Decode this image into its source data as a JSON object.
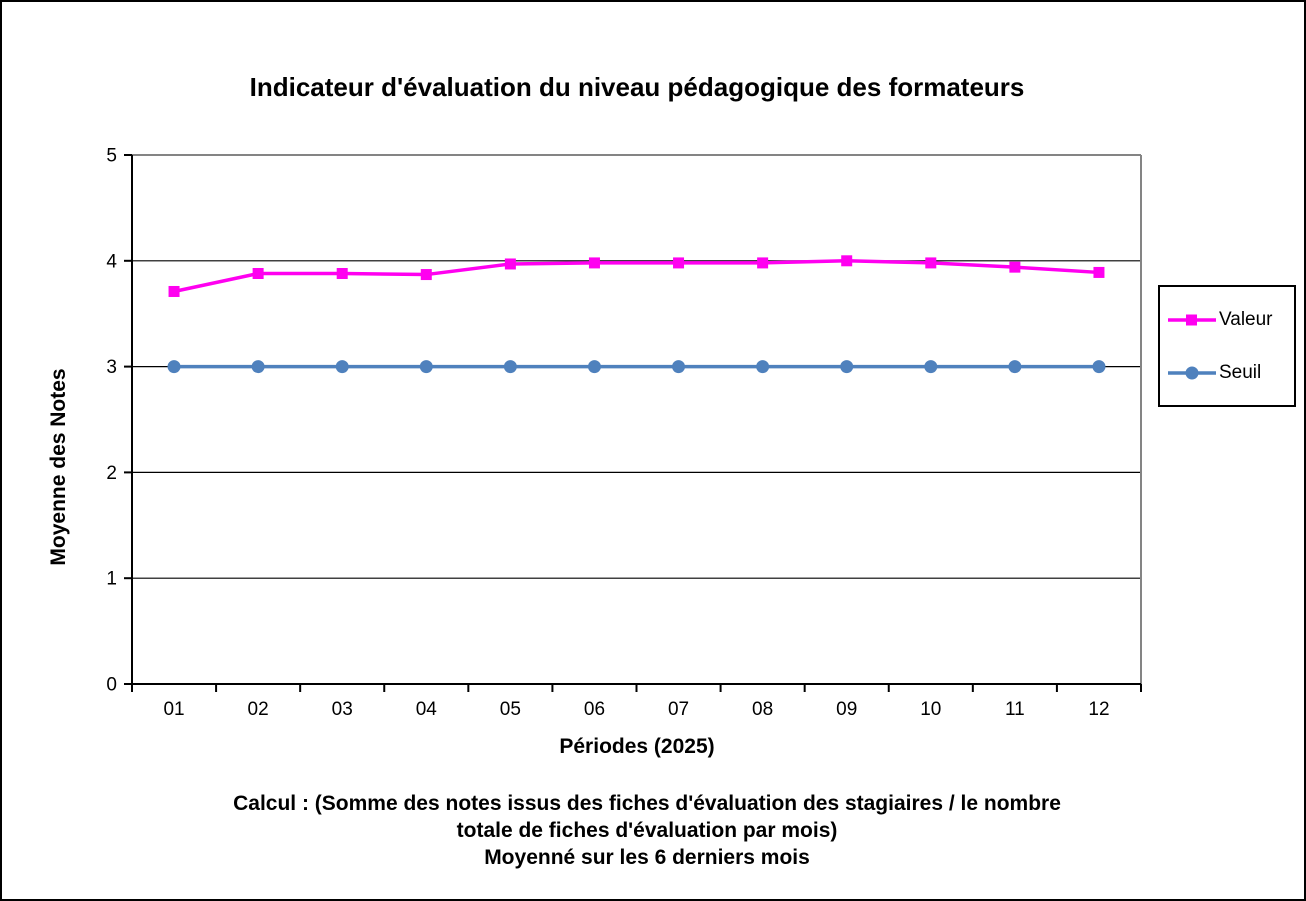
{
  "chart_data": {
    "type": "line",
    "title": "Indicateur d'évaluation du niveau pédagogique des formateurs",
    "xlabel": "Périodes (2025)",
    "ylabel": "Moyenne des Notes",
    "categories": [
      "01",
      "02",
      "03",
      "04",
      "05",
      "06",
      "07",
      "08",
      "09",
      "10",
      "11",
      "12"
    ],
    "series": [
      {
        "name": "Valeur",
        "color": "#FF00F0",
        "marker": "square",
        "values": [
          3.71,
          3.88,
          3.88,
          3.87,
          3.97,
          3.98,
          3.98,
          3.98,
          4.0,
          3.98,
          3.94,
          3.89
        ]
      },
      {
        "name": "Seuil",
        "color": "#4F81BD",
        "marker": "circle",
        "values": [
          3.0,
          3.0,
          3.0,
          3.0,
          3.0,
          3.0,
          3.0,
          3.0,
          3.0,
          3.0,
          3.0,
          3.0
        ]
      }
    ],
    "ylim": [
      0,
      5
    ],
    "yticks": [
      0,
      1,
      2,
      3,
      4,
      5
    ],
    "grid": "horizontal",
    "legend_position": "right"
  },
  "caption": {
    "lines": [
      "Calcul : (Somme des notes issus des fiches d'évaluation des stagiaires / le nombre",
      "totale de fiches d'évaluation par mois)",
      "Moyenné sur les 6 derniers mois"
    ]
  },
  "colors": {
    "axis": "#000000",
    "gridline": "#000000",
    "plot_border": "#848484",
    "background": "#FFFFFF"
  }
}
